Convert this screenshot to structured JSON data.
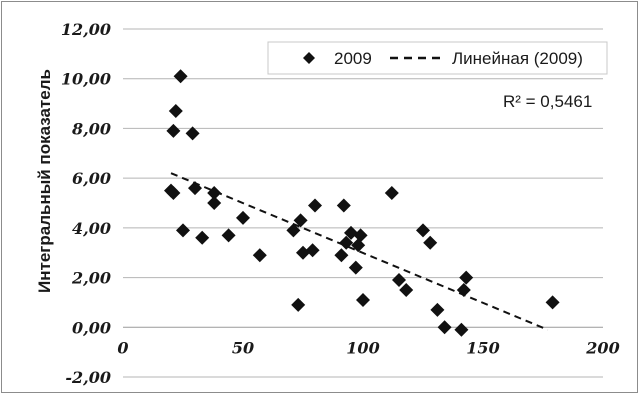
{
  "chart_data": {
    "type": "scatter",
    "title": "",
    "xlabel": "",
    "ylabel": "Интегральный показатель",
    "xlim": [
      0,
      200
    ],
    "ylim": [
      -2,
      12
    ],
    "x_ticks": [
      "0",
      "50",
      "100",
      "150",
      "200"
    ],
    "y_ticks": [
      "-2,00",
      "0,00",
      "2,00",
      "4,00",
      "6,00",
      "8,00",
      "10,00",
      "12,00"
    ],
    "grid": "horizontal",
    "legend_position": "top-right",
    "series": [
      {
        "name": "2009",
        "marker": "diamond",
        "color": "#111111",
        "points": [
          [
            20,
            5.5
          ],
          [
            21,
            5.4
          ],
          [
            21,
            7.9
          ],
          [
            22,
            8.7
          ],
          [
            24,
            10.1
          ],
          [
            25,
            3.9
          ],
          [
            29,
            7.8
          ],
          [
            30,
            5.6
          ],
          [
            33,
            3.6
          ],
          [
            38,
            5.4
          ],
          [
            38,
            5.0
          ],
          [
            44,
            3.7
          ],
          [
            50,
            4.4
          ],
          [
            57,
            2.9
          ],
          [
            71,
            3.9
          ],
          [
            73,
            0.9
          ],
          [
            74,
            4.3
          ],
          [
            75,
            3.0
          ],
          [
            79,
            3.1
          ],
          [
            80,
            4.9
          ],
          [
            91,
            2.9
          ],
          [
            92,
            4.9
          ],
          [
            93,
            3.4
          ],
          [
            95,
            3.8
          ],
          [
            97,
            2.4
          ],
          [
            98,
            3.3
          ],
          [
            99,
            3.7
          ],
          [
            100,
            1.1
          ],
          [
            112,
            5.4
          ],
          [
            115,
            1.9
          ],
          [
            118,
            1.5
          ],
          [
            125,
            3.9
          ],
          [
            128,
            3.4
          ],
          [
            131,
            0.7
          ],
          [
            134,
            0.0
          ],
          [
            141,
            -0.1
          ],
          [
            142,
            1.5
          ],
          [
            143,
            2.0
          ],
          [
            179,
            1.0
          ]
        ]
      }
    ],
    "trendline": {
      "name": "Линейная (2009)",
      "style": "dashed",
      "color": "#111111",
      "x": [
        20,
        177
      ],
      "y": [
        6.2,
        -0.1
      ]
    },
    "annotation": "R² = 0,5461"
  },
  "legend": {
    "series_label": "2009",
    "trend_label": "Линейная (2009)"
  },
  "r2_label": "R² = 0,5461"
}
